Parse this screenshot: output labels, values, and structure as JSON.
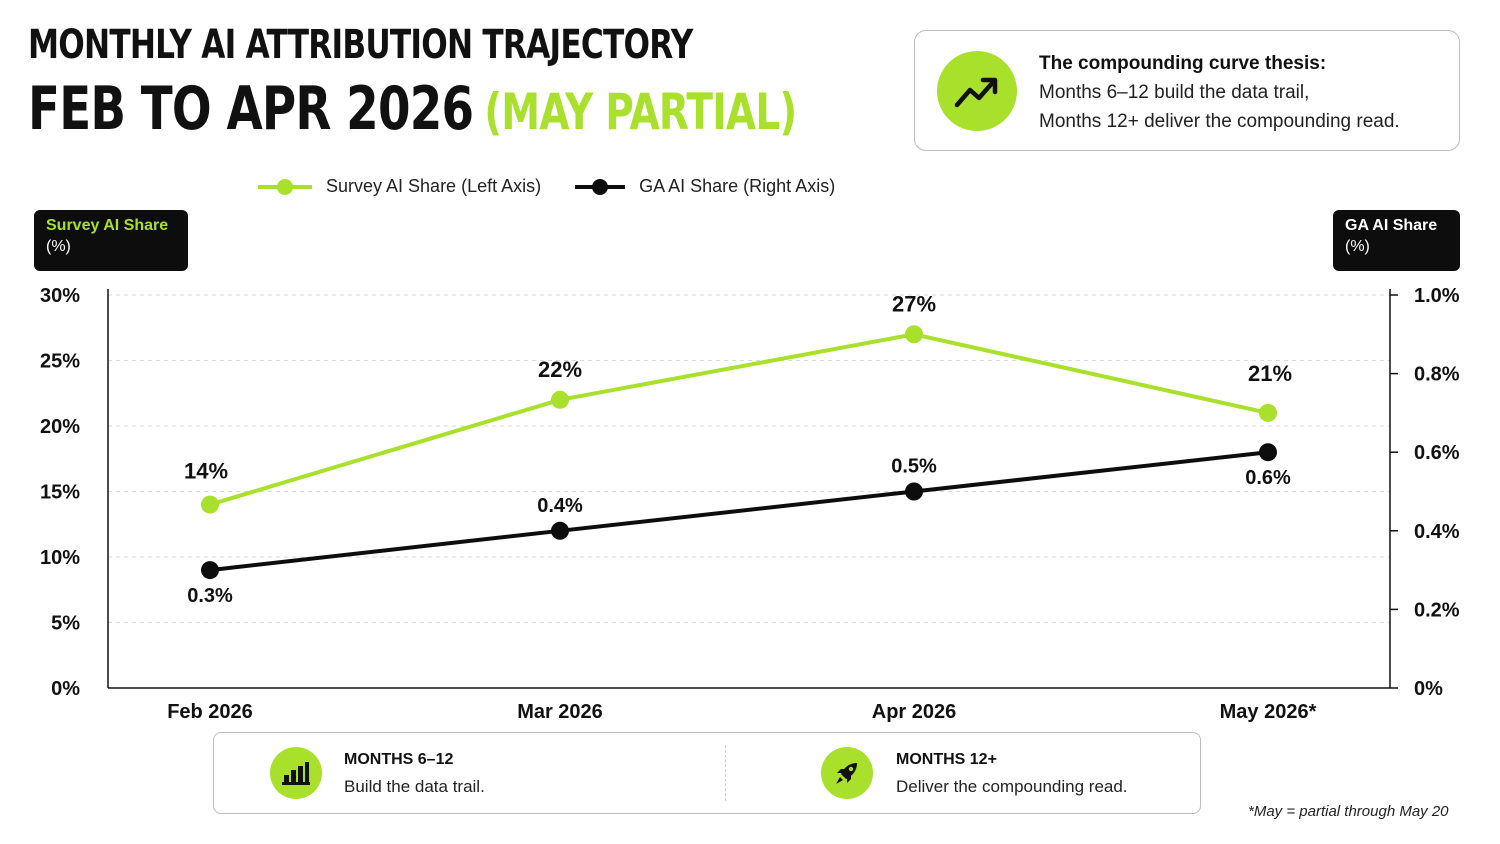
{
  "header": {
    "title_line1": "MONTHLY AI ATTRIBUTION TRAJECTORY",
    "title_line2": "FEB TO APR 2026",
    "title_accent": "(MAY PARTIAL)"
  },
  "thesis": {
    "icon": "trending-up-icon",
    "heading": "The compounding curve thesis:",
    "line1": "Months 6–12 build the data trail,",
    "line2": "Months 12+ deliver the compounding read."
  },
  "axis_tags": {
    "left": {
      "title": "Survey AI Share",
      "unit": "(%)"
    },
    "right": {
      "title": "GA AI Share",
      "unit": "(%)"
    }
  },
  "colors": {
    "survey": "#a8e02b",
    "ga": "#0d0d0d",
    "grid": "#d9d9d9",
    "axis": "#111111"
  },
  "chart_data": {
    "type": "line",
    "categories": [
      "Feb 2026",
      "Mar 2026",
      "Apr 2026",
      "May 2026*"
    ],
    "series": [
      {
        "name": "Survey AI Share (Left Axis)",
        "axis": "left",
        "values": [
          14,
          22,
          27,
          21
        ],
        "labels": [
          "14%",
          "22%",
          "27%",
          "21%"
        ]
      },
      {
        "name": "GA AI Share (Right Axis)",
        "axis": "right",
        "values": [
          0.3,
          0.4,
          0.5,
          0.6
        ],
        "labels": [
          "0.3%",
          "0.4%",
          "0.5%",
          "0.6%"
        ]
      }
    ],
    "left_axis": {
      "ylim": [
        0,
        30
      ],
      "ticks": [
        "0%",
        "5%",
        "10%",
        "15%",
        "20%",
        "25%",
        "30%"
      ]
    },
    "right_axis": {
      "ylim": [
        0,
        1.0
      ],
      "ticks": [
        "0%",
        "0.2%",
        "0.4%",
        "0.6%",
        "0.8%",
        "1.0%"
      ]
    },
    "grid": true,
    "legend_position": "top-left"
  },
  "bottom": {
    "left": {
      "icon": "bar-chart-icon",
      "heading": "MONTHS 6–12",
      "text": "Build the data trail."
    },
    "right": {
      "icon": "rocket-icon",
      "heading": "MONTHS 12+",
      "text": "Deliver the compounding read."
    }
  },
  "footnote": "*May = partial through May 20"
}
